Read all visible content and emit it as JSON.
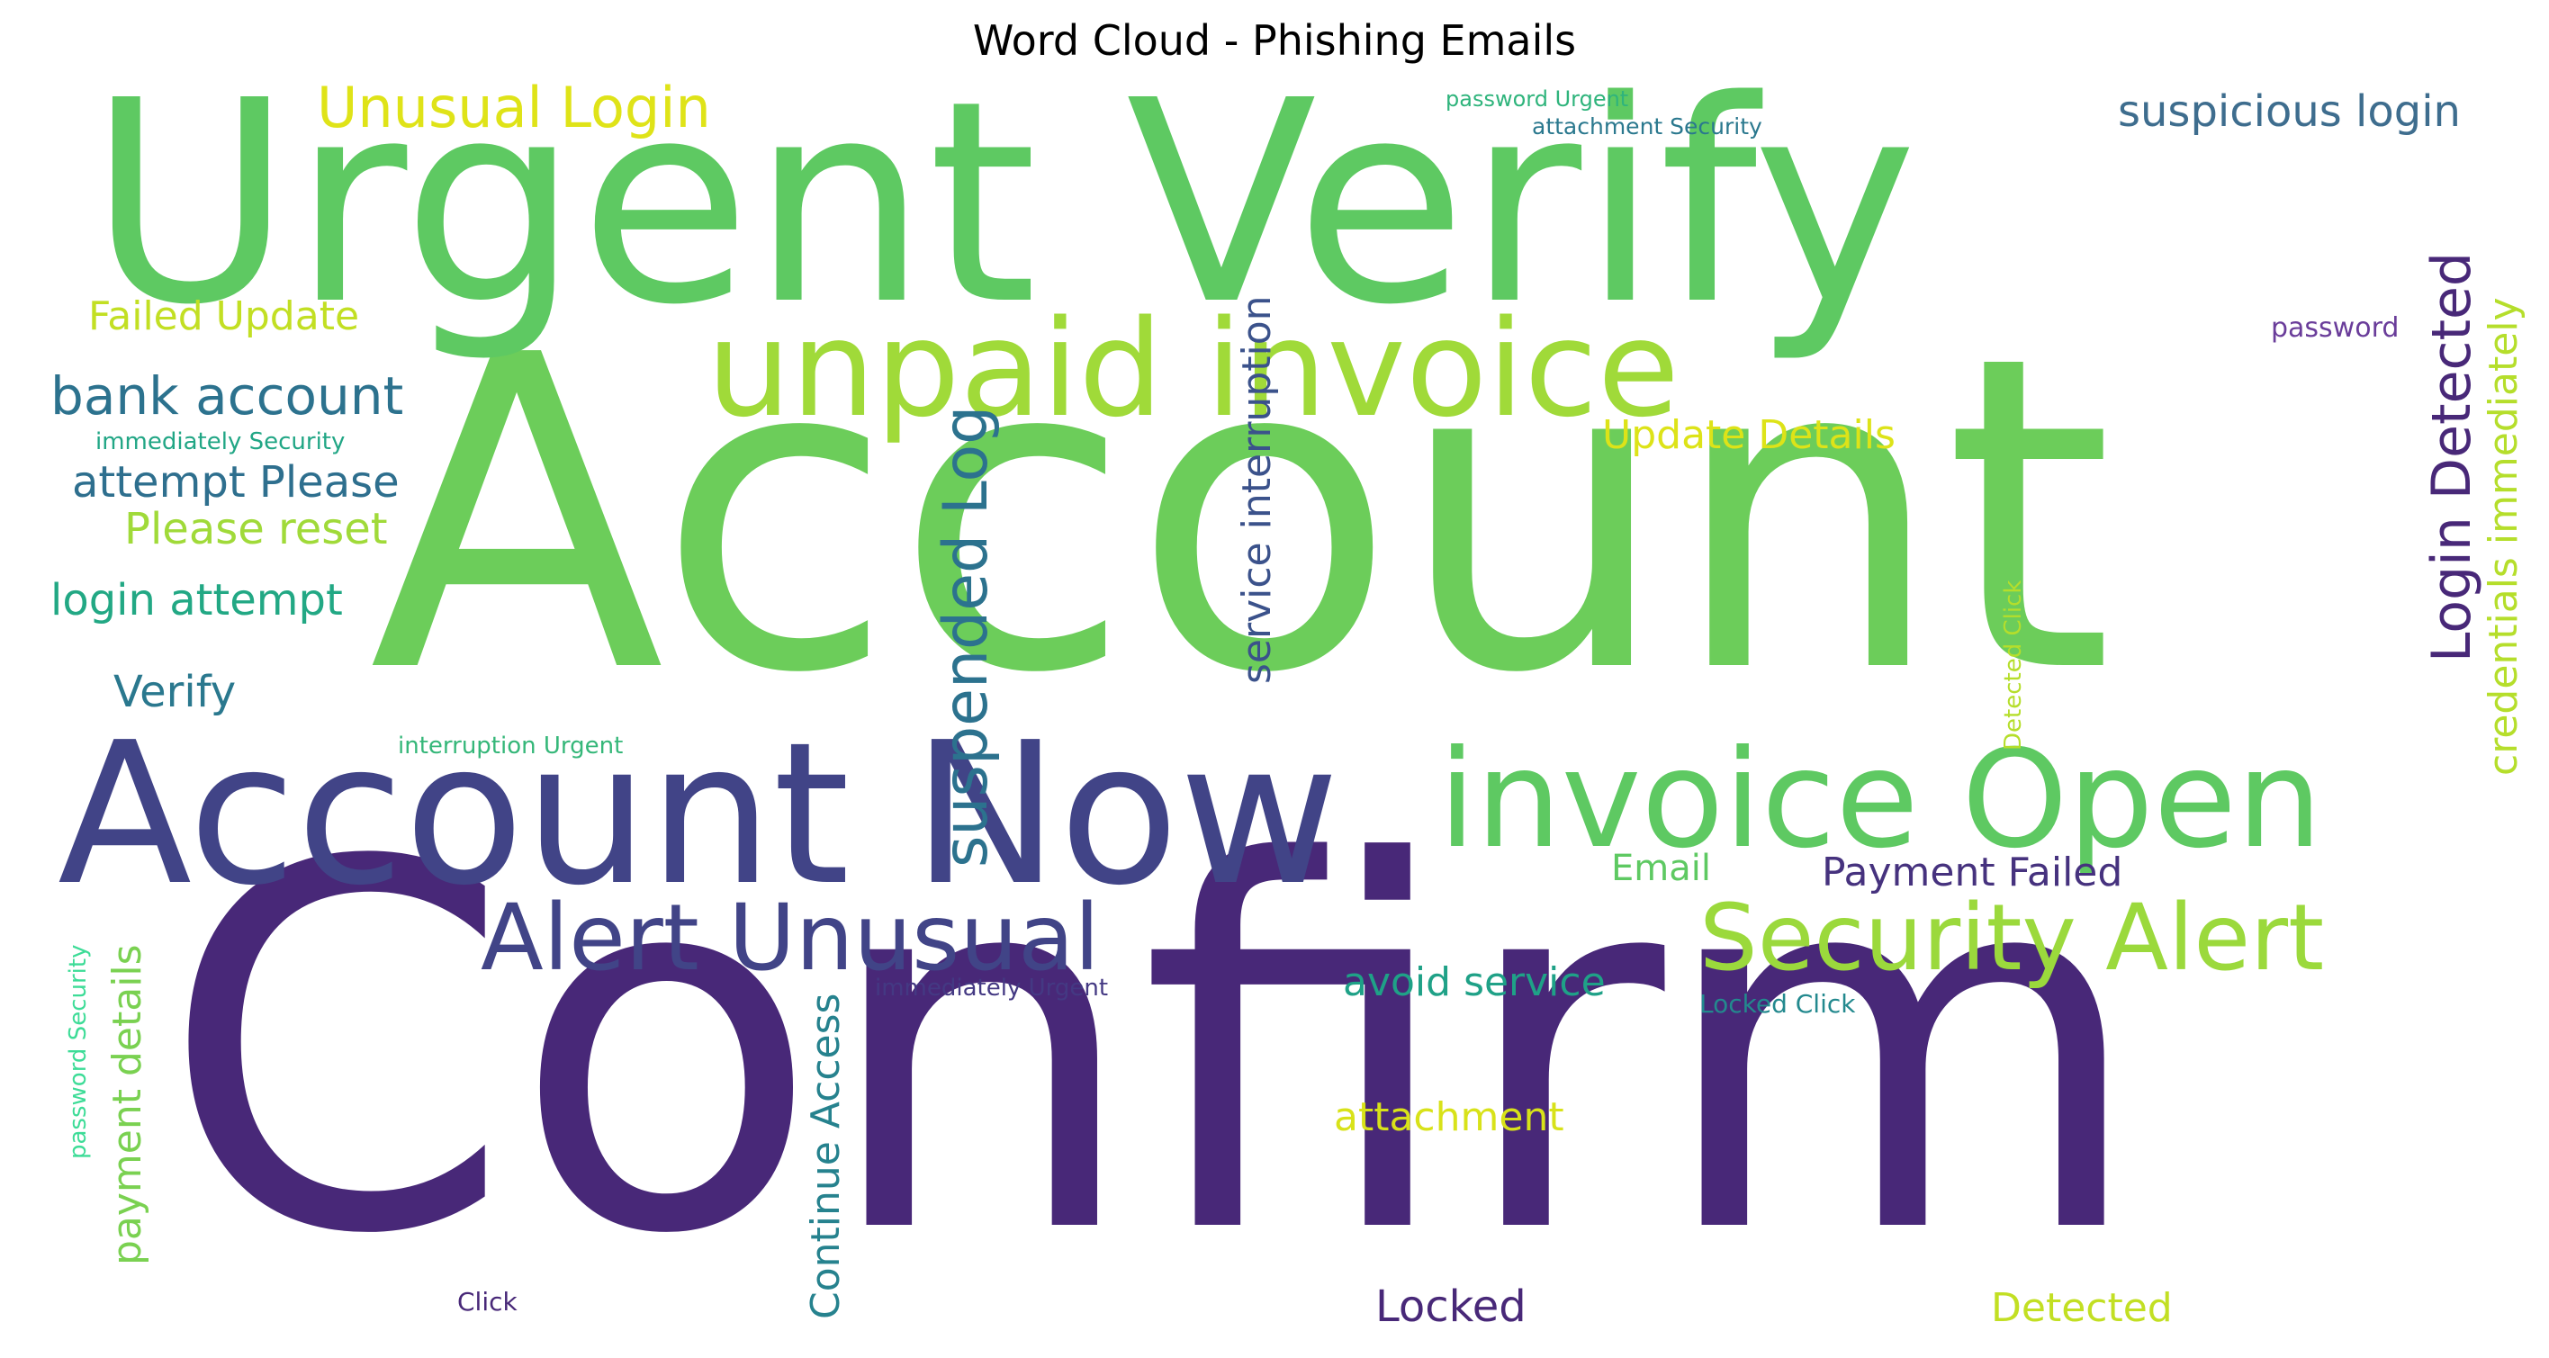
{
  "title": "Word Cloud - Phishing Emails",
  "words": [
    {
      "id": "confirm",
      "text": "Confirm",
      "color": "#482878",
      "rotate": false
    },
    {
      "id": "account",
      "text": "Account",
      "color": "#6ccd5a",
      "rotate": false
    },
    {
      "id": "urgent-verify",
      "text": "Urgent Verify",
      "color": "#5ec962",
      "rotate": false
    },
    {
      "id": "account-now",
      "text": "Account Now",
      "color": "#414487",
      "rotate": false
    },
    {
      "id": "unpaid-invoice",
      "text": "unpaid invoice",
      "color": "#a0da39",
      "rotate": false
    },
    {
      "id": "invoice-open",
      "text": "invoice Open",
      "color": "#5ec962",
      "rotate": false
    },
    {
      "id": "security-alert",
      "text": "Security Alert",
      "color": "#9bd93c",
      "rotate": false
    },
    {
      "id": "alert-unusual",
      "text": "Alert Unusual",
      "color": "#414487",
      "rotate": false
    },
    {
      "id": "unusual-login",
      "text": "Unusual Login",
      "color": "#dfe318",
      "rotate": false
    },
    {
      "id": "suspicious-login",
      "text": "suspicious login",
      "color": "#3e6d8e",
      "rotate": false
    },
    {
      "id": "bank-account",
      "text": "bank account",
      "color": "#2c728e",
      "rotate": false
    },
    {
      "id": "failed-update",
      "text": "Failed Update",
      "color": "#c2df23",
      "rotate": false
    },
    {
      "id": "immediately-security",
      "text": "immediately Security",
      "color": "#21a685",
      "rotate": false
    },
    {
      "id": "attempt-please",
      "text": "attempt Please",
      "color": "#2e6f8e",
      "rotate": false
    },
    {
      "id": "please-reset",
      "text": "Please reset",
      "color": "#a0da39",
      "rotate": false
    },
    {
      "id": "login-attempt",
      "text": "login attempt",
      "color": "#22a884",
      "rotate": false
    },
    {
      "id": "verify",
      "text": "Verify",
      "color": "#2a788e",
      "rotate": false
    },
    {
      "id": "interruption-urgent",
      "text": "interruption Urgent",
      "color": "#35b779",
      "rotate": false
    },
    {
      "id": "password-urgent",
      "text": "password Urgent",
      "color": "#2fb47c",
      "rotate": false
    },
    {
      "id": "attachment-security",
      "text": "attachment Security",
      "color": "#2a788e",
      "rotate": false
    },
    {
      "id": "password",
      "text": "password",
      "color": "#6a3d9a",
      "rotate": false
    },
    {
      "id": "update-details",
      "text": "Update Details",
      "color": "#dde318",
      "rotate": false
    },
    {
      "id": "email",
      "text": "Email",
      "color": "#5ec962",
      "rotate": false
    },
    {
      "id": "payment-failed",
      "text": "Payment Failed",
      "color": "#46327e",
      "rotate": false
    },
    {
      "id": "avoid-service",
      "text": "avoid service",
      "color": "#1fa187",
      "rotate": false
    },
    {
      "id": "immediately-urgent",
      "text": "immediately Urgent",
      "color": "#443983",
      "rotate": false
    },
    {
      "id": "locked-click",
      "text": "Locked Click",
      "color": "#23898e",
      "rotate": false
    },
    {
      "id": "attachment",
      "text": "attachment",
      "color": "#d8e219",
      "rotate": false
    },
    {
      "id": "locked",
      "text": "Locked",
      "color": "#482878",
      "rotate": false
    },
    {
      "id": "detected",
      "text": "Detected",
      "color": "#c2df23",
      "rotate": false
    },
    {
      "id": "click",
      "text": "Click",
      "color": "#482878",
      "rotate": false
    },
    {
      "id": "suspended-log",
      "text": "suspended Log",
      "color": "#2c728e",
      "rotate": true
    },
    {
      "id": "service-interruption",
      "text": "service interruption",
      "color": "#3b528b",
      "rotate": true
    },
    {
      "id": "login-detected",
      "text": "Login Detected",
      "color": "#482878",
      "rotate": true
    },
    {
      "id": "credentials-immediately",
      "text": "credentials immediately",
      "color": "#b5de2b",
      "rotate": true
    },
    {
      "id": "detected-click",
      "text": "Detected Click",
      "color": "#b5de2b",
      "rotate": true
    },
    {
      "id": "payment-details",
      "text": "payment details",
      "color": "#7ad151",
      "rotate": true
    },
    {
      "id": "password-security",
      "text": "password Security",
      "color": "#3ddc97",
      "rotate": true
    },
    {
      "id": "continue-access",
      "text": "Continue Access",
      "color": "#26828e",
      "rotate": true
    }
  ]
}
